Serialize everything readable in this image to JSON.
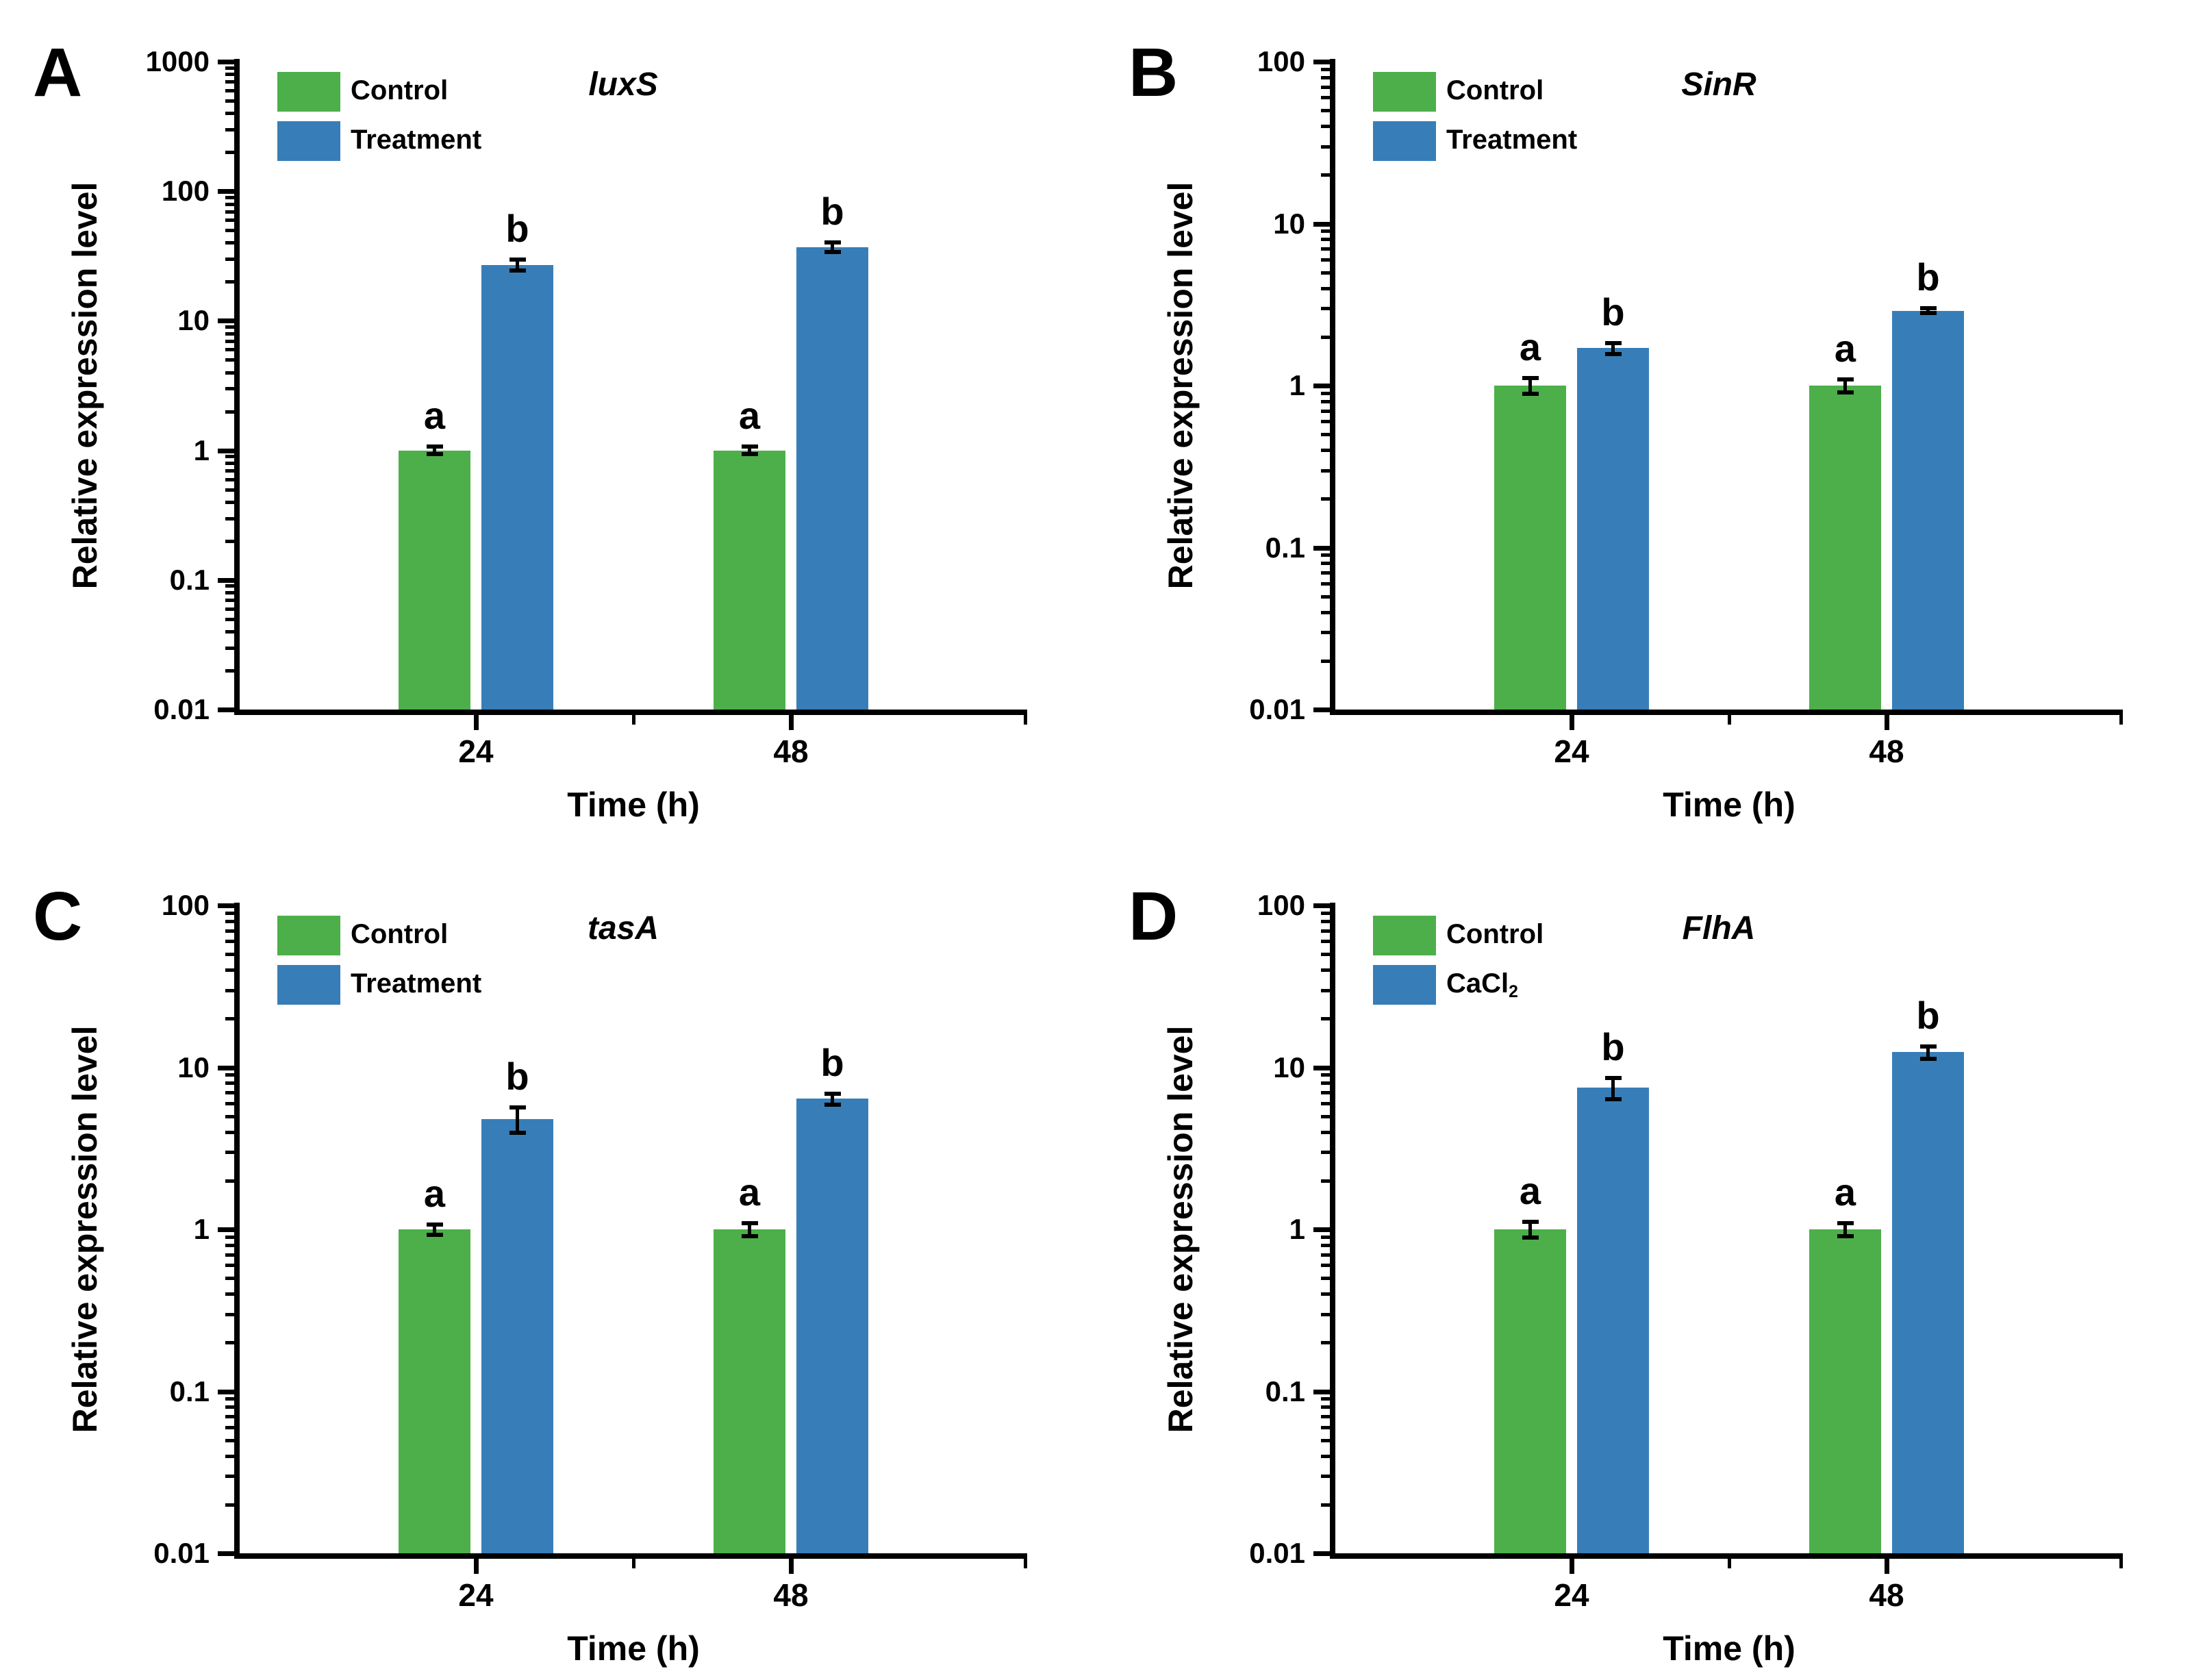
{
  "figure": {
    "axis_color": "#000000",
    "background": "#ffffff",
    "control_color": "#4DAF4A",
    "treatment_color": "#377EB8"
  },
  "chart_data": [
    {
      "type": "bar",
      "panel_letter": "A",
      "title": "luxS",
      "xlabel": "Time (h)",
      "ylabel": "Relative expression level",
      "categories": [
        "24",
        "48"
      ],
      "ylog": true,
      "ylim": [
        0.01,
        1000
      ],
      "yticks": [
        "1000",
        "100",
        "10",
        "1",
        "0.1",
        "0.01"
      ],
      "legend_position": "top-left-inside",
      "grid": false,
      "series": [
        {
          "name": "Control",
          "label": {
            "text": "Control",
            "sub": ""
          },
          "color": "#4DAF4A",
          "values": [
            1.0,
            1.0
          ],
          "errors": [
            0.08,
            0.08
          ],
          "sig_letters": [
            "a",
            "a"
          ]
        },
        {
          "name": "Treatment",
          "label": {
            "text": "Treatment",
            "sub": ""
          },
          "color": "#377EB8",
          "values": [
            27,
            37
          ],
          "errors": [
            3.0,
            3.5
          ],
          "sig_letters": [
            "b",
            "b"
          ]
        }
      ]
    },
    {
      "type": "bar",
      "panel_letter": "B",
      "title": "SinR",
      "xlabel": "Time (h)",
      "ylabel": "Relative expression level",
      "categories": [
        "24",
        "48"
      ],
      "ylog": true,
      "ylim": [
        0.01,
        100
      ],
      "yticks": [
        "100",
        "10",
        "1",
        "0.1",
        "0.01"
      ],
      "legend_position": "top-left-inside",
      "grid": false,
      "series": [
        {
          "name": "Control",
          "label": {
            "text": "Control",
            "sub": ""
          },
          "color": "#4DAF4A",
          "values": [
            1.0,
            1.0
          ],
          "errors": [
            0.12,
            0.1
          ],
          "sig_letters": [
            "a",
            "a"
          ]
        },
        {
          "name": "Treatment",
          "label": {
            "text": "Treatment",
            "sub": ""
          },
          "color": "#377EB8",
          "values": [
            1.7,
            2.9
          ],
          "errors": [
            0.15,
            0.12
          ],
          "sig_letters": [
            "b",
            "b"
          ]
        }
      ]
    },
    {
      "type": "bar",
      "panel_letter": "C",
      "title": "tasA",
      "xlabel": "Time (h)",
      "ylabel": "Relative expression level",
      "categories": [
        "24",
        "48"
      ],
      "ylog": true,
      "ylim": [
        0.01,
        100
      ],
      "yticks": [
        "100",
        "10",
        "1",
        "0.1",
        "0.01"
      ],
      "legend_position": "top-left-inside",
      "grid": false,
      "series": [
        {
          "name": "Control",
          "label": {
            "text": "Control",
            "sub": ""
          },
          "color": "#4DAF4A",
          "values": [
            1.0,
            1.0
          ],
          "errors": [
            0.08,
            0.1
          ],
          "sig_letters": [
            "a",
            "a"
          ]
        },
        {
          "name": "Treatment",
          "label": {
            "text": "Treatment",
            "sub": ""
          },
          "color": "#377EB8",
          "values": [
            4.8,
            6.4
          ],
          "errors": [
            0.9,
            0.55
          ],
          "sig_letters": [
            "b",
            "b"
          ]
        }
      ]
    },
    {
      "type": "bar",
      "panel_letter": "D",
      "title": "FlhA",
      "xlabel": "Time (h)",
      "ylabel": "Relative expression level",
      "categories": [
        "24",
        "48"
      ],
      "ylog": true,
      "ylim": [
        0.01,
        100
      ],
      "yticks": [
        "100",
        "10",
        "1",
        "0.1",
        "0.01"
      ],
      "legend_position": "top-left-inside",
      "grid": false,
      "series": [
        {
          "name": "Control",
          "label": {
            "text": "Control",
            "sub": ""
          },
          "color": "#4DAF4A",
          "values": [
            1.0,
            1.0
          ],
          "errors": [
            0.12,
            0.1
          ],
          "sig_letters": [
            "a",
            "a"
          ]
        },
        {
          "name": "CaCl2",
          "label": {
            "text": "CaCl",
            "sub": "2"
          },
          "color": "#377EB8",
          "values": [
            7.5,
            12.4
          ],
          "errors": [
            1.2,
            1.2
          ],
          "sig_letters": [
            "b",
            "b"
          ]
        }
      ]
    }
  ]
}
